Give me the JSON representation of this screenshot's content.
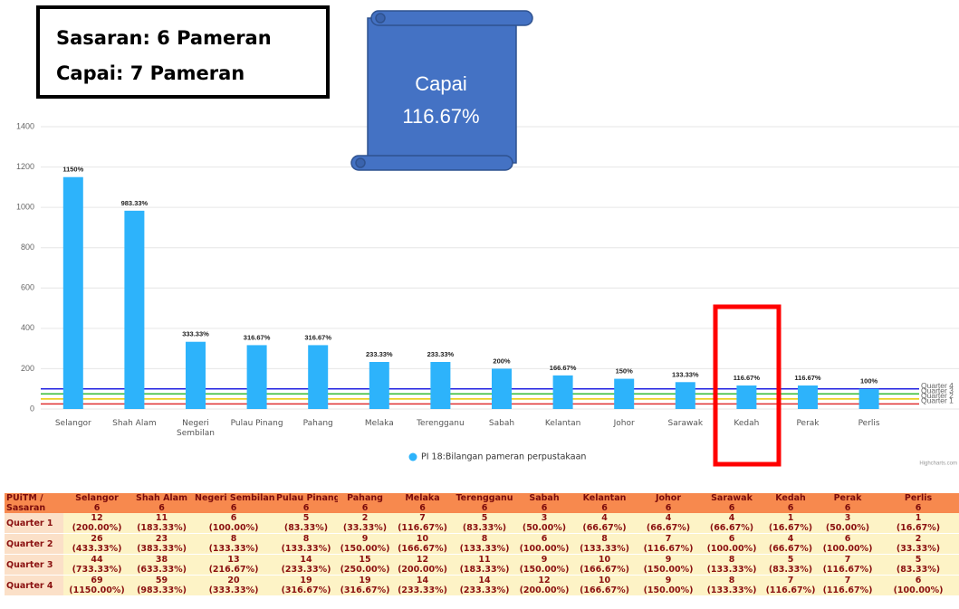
{
  "chart_data": {
    "type": "bar",
    "categories": [
      "Selangor",
      "Shah Alam",
      "Negeri Sembilan",
      "Pulau Pinang",
      "Pahang",
      "Melaka",
      "Terengganu",
      "Sabah",
      "Kelantan",
      "Johor",
      "Sarawak",
      "Kedah",
      "Perak",
      "Perlis"
    ],
    "series": [
      {
        "name": "PI 18:Bilangan pameran perpustakaan",
        "color": "#2db3fb",
        "values": [
          1150,
          983.33,
          333.33,
          316.67,
          316.67,
          233.33,
          233.33,
          200,
          166.67,
          150,
          133.33,
          116.67,
          116.67,
          100
        ],
        "value_labels": [
          "1150%",
          "983.33%",
          "333.33%",
          "316.67%",
          "316.67%",
          "233.33%",
          "233.33%",
          "200%",
          "166.67%",
          "150%",
          "133.33%",
          "116.67%",
          "116.67%",
          "100%"
        ]
      }
    ],
    "ylim": [
      0,
      1400
    ],
    "yticks": [
      0,
      200,
      400,
      600,
      800,
      1000,
      1200,
      1400
    ],
    "grid": true,
    "plot_lines": [
      {
        "value": 100,
        "label": "Quarter 4",
        "color": "#2020e0"
      },
      {
        "value": 75,
        "label": "Quarter 3",
        "color": "#33bb33"
      },
      {
        "value": 50,
        "label": "Quarter 2",
        "color": "#e8c800"
      },
      {
        "value": 25,
        "label": "Quarter 1",
        "color": "#e03030"
      }
    ],
    "credits": "Highcharts.com",
    "annotations": {
      "target_box": [
        "Sasaran: 6 Pameran",
        "Capai: 7 Pameran"
      ],
      "scroll": [
        "Capai",
        "116.67%"
      ]
    }
  },
  "table": {
    "corner": "PUiTM / Sasaran",
    "columns": [
      {
        "name": "Selangor",
        "target": "6"
      },
      {
        "name": "Shah Alam",
        "target": "6"
      },
      {
        "name": "Negeri Sembilan",
        "target": "6"
      },
      {
        "name": "Pulau Pinang",
        "target": "6"
      },
      {
        "name": "Pahang",
        "target": "6"
      },
      {
        "name": "Melaka",
        "target": "6"
      },
      {
        "name": "Terengganu",
        "target": "6"
      },
      {
        "name": "Sabah",
        "target": "6"
      },
      {
        "name": "Kelantan",
        "target": "6"
      },
      {
        "name": "Johor",
        "target": "6"
      },
      {
        "name": "Sarawak",
        "target": "6"
      },
      {
        "name": "Kedah",
        "target": "6"
      },
      {
        "name": "Perak",
        "target": "6"
      },
      {
        "name": "Perlis",
        "target": "6"
      }
    ],
    "rows": [
      {
        "label": "Quarter 1",
        "cells": [
          [
            "12",
            "(200.00%)"
          ],
          [
            "11",
            "(183.33%)"
          ],
          [
            "6",
            "(100.00%)"
          ],
          [
            "5",
            "(83.33%)"
          ],
          [
            "2",
            "(33.33%)"
          ],
          [
            "7",
            "(116.67%)"
          ],
          [
            "5",
            "(83.33%)"
          ],
          [
            "3",
            "(50.00%)"
          ],
          [
            "4",
            "(66.67%)"
          ],
          [
            "4",
            "(66.67%)"
          ],
          [
            "4",
            "(66.67%)"
          ],
          [
            "1",
            "(16.67%)"
          ],
          [
            "3",
            "(50.00%)"
          ],
          [
            "1",
            "(16.67%)"
          ]
        ]
      },
      {
        "label": "Quarter 2",
        "cells": [
          [
            "26",
            "(433.33%)"
          ],
          [
            "23",
            "(383.33%)"
          ],
          [
            "8",
            "(133.33%)"
          ],
          [
            "8",
            "(133.33%)"
          ],
          [
            "9",
            "(150.00%)"
          ],
          [
            "10",
            "(166.67%)"
          ],
          [
            "8",
            "(133.33%)"
          ],
          [
            "6",
            "(100.00%)"
          ],
          [
            "8",
            "(133.33%)"
          ],
          [
            "7",
            "(116.67%)"
          ],
          [
            "6",
            "(100.00%)"
          ],
          [
            "4",
            "(66.67%)"
          ],
          [
            "6",
            "(100.00%)"
          ],
          [
            "2",
            "(33.33%)"
          ]
        ]
      },
      {
        "label": "Quarter 3",
        "cells": [
          [
            "44",
            "(733.33%)"
          ],
          [
            "38",
            "(633.33%)"
          ],
          [
            "13",
            "(216.67%)"
          ],
          [
            "14",
            "(233.33%)"
          ],
          [
            "15",
            "(250.00%)"
          ],
          [
            "12",
            "(200.00%)"
          ],
          [
            "11",
            "(183.33%)"
          ],
          [
            "9",
            "(150.00%)"
          ],
          [
            "10",
            "(166.67%)"
          ],
          [
            "9",
            "(150.00%)"
          ],
          [
            "8",
            "(133.33%)"
          ],
          [
            "5",
            "(83.33%)"
          ],
          [
            "7",
            "(116.67%)"
          ],
          [
            "5",
            "(83.33%)"
          ]
        ]
      },
      {
        "label": "Quarter 4",
        "cells": [
          [
            "69",
            "(1150.00%)"
          ],
          [
            "59",
            "(983.33%)"
          ],
          [
            "20",
            "(333.33%)"
          ],
          [
            "19",
            "(316.67%)"
          ],
          [
            "19",
            "(316.67%)"
          ],
          [
            "14",
            "(233.33%)"
          ],
          [
            "14",
            "(233.33%)"
          ],
          [
            "12",
            "(200.00%)"
          ],
          [
            "10",
            "(166.67%)"
          ],
          [
            "9",
            "(150.00%)"
          ],
          [
            "8",
            "(133.33%)"
          ],
          [
            "7",
            "(116.67%)"
          ],
          [
            "7",
            "(116.67%)"
          ],
          [
            "6",
            "(100.00%)"
          ]
        ]
      }
    ]
  }
}
